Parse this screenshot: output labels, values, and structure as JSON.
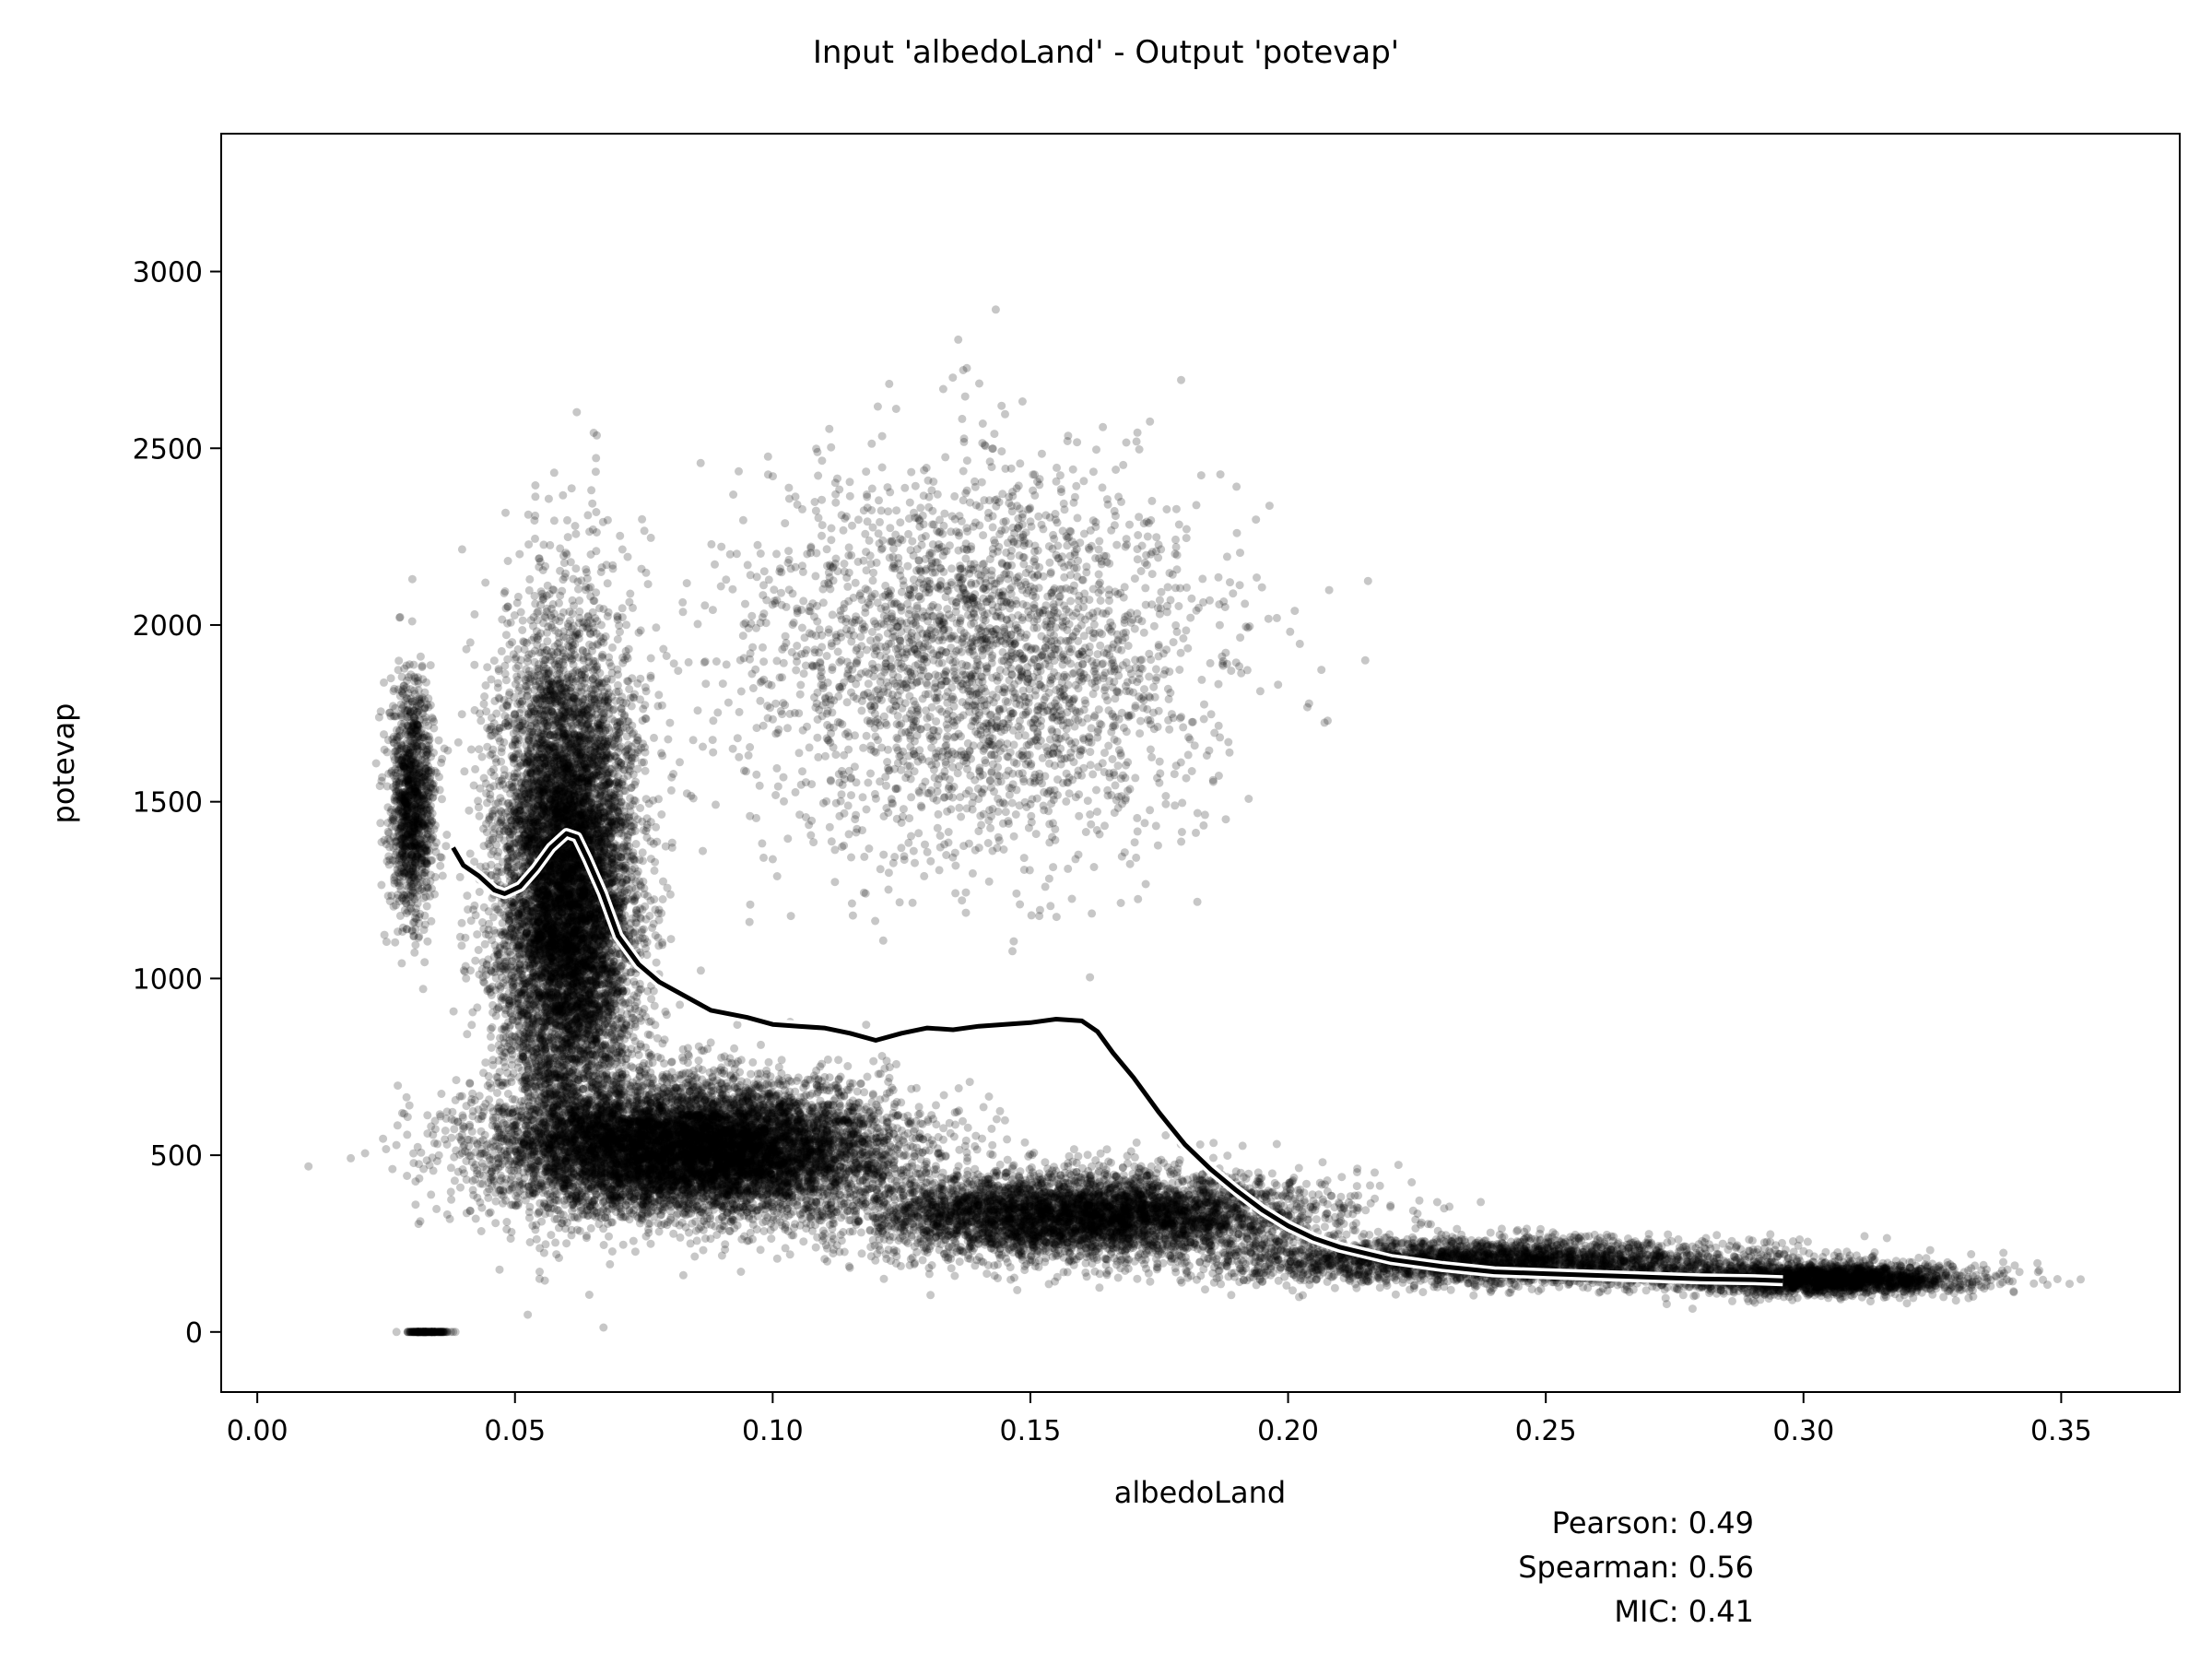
{
  "title": "Input 'albedoLand' - Output 'potevap'",
  "colors": {
    "points": "#000000",
    "trend_line": "#000000",
    "trend_halo": "#ffffff",
    "background": "#ffffff"
  },
  "chart_data": {
    "type": "scatter",
    "title": "Input 'albedoLand' - Output 'potevap'",
    "xlabel": "albedoLand",
    "ylabel": "potevap",
    "xlim": [
      -0.007,
      0.373
    ],
    "ylim": [
      -170,
      3390
    ],
    "x_ticks": [
      "0.00",
      "0.05",
      "0.10",
      "0.15",
      "0.20",
      "0.25",
      "0.30",
      "0.35"
    ],
    "x_tick_values": [
      0.0,
      0.05,
      0.1,
      0.15,
      0.2,
      0.25,
      0.3,
      0.35
    ],
    "y_ticks": [
      "0",
      "500",
      "1000",
      "1500",
      "2000",
      "2500",
      "3000"
    ],
    "y_tick_values": [
      0,
      500,
      1000,
      1500,
      2000,
      2500,
      3000
    ],
    "grid": false,
    "point_style": "black, semi-transparent",
    "trend_line": {
      "x": [
        0.038,
        0.04,
        0.043,
        0.046,
        0.048,
        0.051,
        0.054,
        0.057,
        0.06,
        0.062,
        0.064,
        0.067,
        0.07,
        0.074,
        0.078,
        0.083,
        0.088,
        0.095,
        0.1,
        0.105,
        0.11,
        0.115,
        0.12,
        0.125,
        0.13,
        0.135,
        0.14,
        0.145,
        0.15,
        0.155,
        0.16,
        0.163,
        0.166,
        0.17,
        0.175,
        0.18,
        0.185,
        0.19,
        0.195,
        0.2,
        0.205,
        0.21,
        0.22,
        0.23,
        0.24,
        0.25,
        0.26,
        0.27,
        0.28,
        0.29,
        0.296
      ],
      "y": [
        1370,
        1320,
        1290,
        1250,
        1240,
        1260,
        1310,
        1370,
        1410,
        1400,
        1340,
        1240,
        1120,
        1040,
        990,
        950,
        910,
        890,
        870,
        865,
        860,
        845,
        825,
        845,
        860,
        855,
        865,
        870,
        875,
        885,
        880,
        850,
        790,
        720,
        620,
        530,
        460,
        400,
        345,
        300,
        265,
        240,
        205,
        185,
        170,
        165,
        160,
        155,
        150,
        148,
        145
      ]
    },
    "scatter_clusters": [
      {
        "x_center": 0.06,
        "x_spread": 0.012,
        "y_center": 1250,
        "y_spread": 650,
        "density": 9000
      },
      {
        "x_center": 0.03,
        "x_spread": 0.004,
        "y_center": 1500,
        "y_spread": 300,
        "density": 1200
      },
      {
        "x_center": 0.085,
        "x_spread": 0.035,
        "y_center": 520,
        "y_spread": 170,
        "density": 9000
      },
      {
        "x_center": 0.14,
        "x_spread": 0.04,
        "y_center": 1900,
        "y_spread": 500,
        "density": 2800
      },
      {
        "x_center": 0.16,
        "x_spread": 0.04,
        "y_center": 330,
        "y_spread": 110,
        "density": 5000
      },
      {
        "x_center": 0.24,
        "x_spread": 0.05,
        "y_center": 200,
        "y_spread": 60,
        "density": 3000
      },
      {
        "x_center": 0.305,
        "x_spread": 0.025,
        "y_center": 150,
        "y_spread": 40,
        "density": 2200
      },
      {
        "x_center": 0.033,
        "x_spread": 0.004,
        "y_center": 0,
        "y_spread": 0,
        "density": 150
      }
    ],
    "statistics": [
      {
        "label": "Pearson",
        "value": "0.49",
        "text": "Pearson: 0.49"
      },
      {
        "label": "Spearman",
        "value": "0.56",
        "text": "Spearman: 0.56"
      },
      {
        "label": "MIC",
        "value": "0.41",
        "text": "MIC: 0.41"
      }
    ]
  }
}
